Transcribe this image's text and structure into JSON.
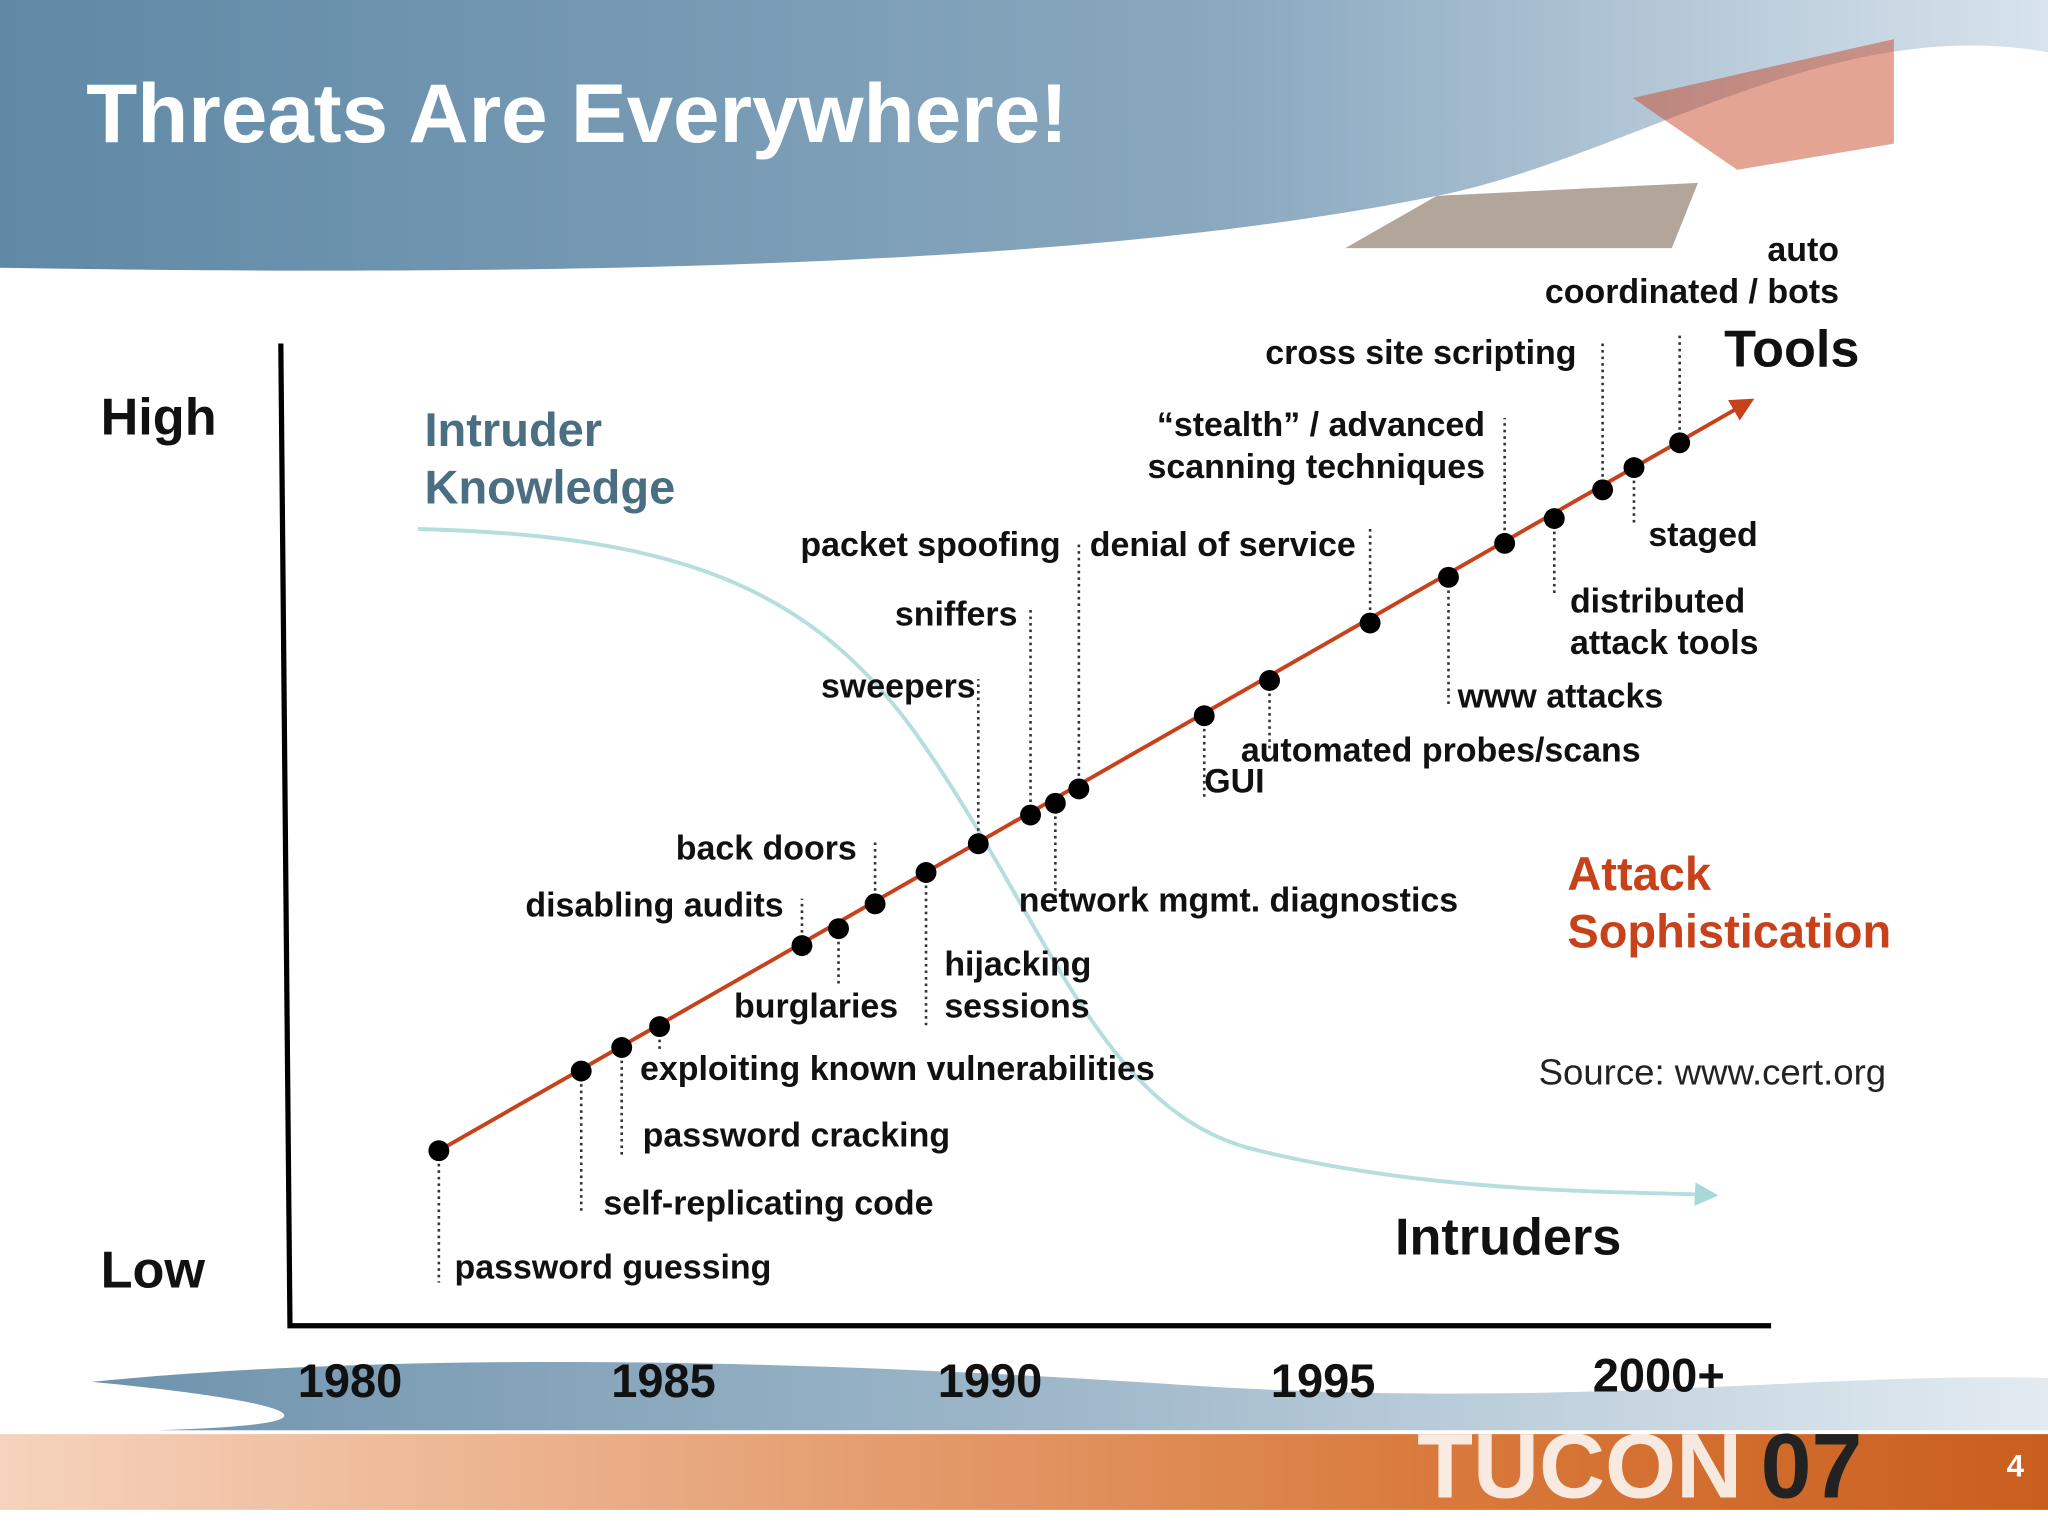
{
  "title": "Threats Are Everywhere!",
  "y_axis": {
    "high": "High",
    "low": "Low"
  },
  "x_axis": {
    "labels": [
      "1980",
      "1985",
      "1990",
      "1995",
      "2000+"
    ]
  },
  "curves": {
    "knowledge": [
      "Intruder",
      "Knowledge"
    ],
    "tools": "Tools",
    "sophistication": [
      "Attack",
      "Sophistication"
    ],
    "intruders": "Intruders"
  },
  "events": [
    [
      "password guessing"
    ],
    [
      "self-replicating code"
    ],
    [
      "password cracking"
    ],
    [
      "exploiting known vulnerabilities"
    ],
    [
      "disabling audits"
    ],
    [
      "burglaries"
    ],
    [
      "back doors"
    ],
    [
      "hijacking",
      "sessions"
    ],
    [
      "sweepers"
    ],
    [
      "sniffers"
    ],
    [
      "network mgmt. diagnostics"
    ],
    [
      "packet spoofing"
    ],
    [
      "GUI"
    ],
    [
      "automated probes/scans"
    ],
    [
      "denial of service"
    ],
    [
      "www attacks"
    ],
    [
      "“stealth” / advanced",
      "scanning techniques"
    ],
    [
      "distributed",
      "attack tools"
    ],
    [
      "cross site scripting"
    ],
    [
      "staged"
    ],
    [
      "auto",
      "coordinated / bots"
    ]
  ],
  "source": "Source: www.cert.org",
  "footer": {
    "logo": "TUCON",
    "logo_year": "07",
    "page": "4"
  }
}
